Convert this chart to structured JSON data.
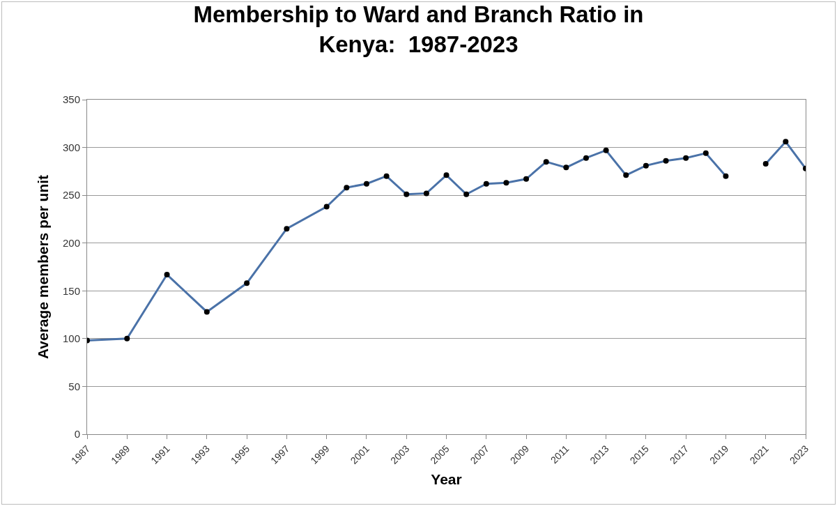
{
  "chart_data": {
    "type": "line",
    "title": "Membership to Ward and Branch Ratio in\nKenya:  1987-2023",
    "xlabel": "Year",
    "ylabel": "Average members per unit",
    "x": [
      1987,
      1989,
      1991,
      1993,
      1995,
      1997,
      1999,
      2000,
      2001,
      2002,
      2003,
      2004,
      2005,
      2006,
      2007,
      2008,
      2009,
      2010,
      2011,
      2012,
      2013,
      2014,
      2015,
      2016,
      2017,
      2018,
      2019,
      2020,
      2021,
      2022,
      2023
    ],
    "series": [
      {
        "color": "#4a72a8",
        "values": [
          98,
          100,
          167,
          128,
          158,
          215,
          238,
          258,
          262,
          270,
          251,
          252,
          271,
          251,
          262,
          263,
          267,
          285,
          279,
          289,
          297,
          271,
          281,
          286,
          289,
          294,
          270,
          null,
          283,
          306,
          278
        ]
      }
    ],
    "xlim": [
      1987,
      2023
    ],
    "xticks": [
      1987,
      1989,
      1991,
      1993,
      1995,
      1997,
      1999,
      2001,
      2003,
      2005,
      2007,
      2009,
      2011,
      2013,
      2015,
      2017,
      2019,
      2021,
      2023
    ],
    "ylim": [
      0,
      350
    ],
    "yticks": [
      0,
      50,
      100,
      150,
      200,
      250,
      300,
      350
    ],
    "grid": "y",
    "marker": "circle",
    "line_style": "solid"
  }
}
